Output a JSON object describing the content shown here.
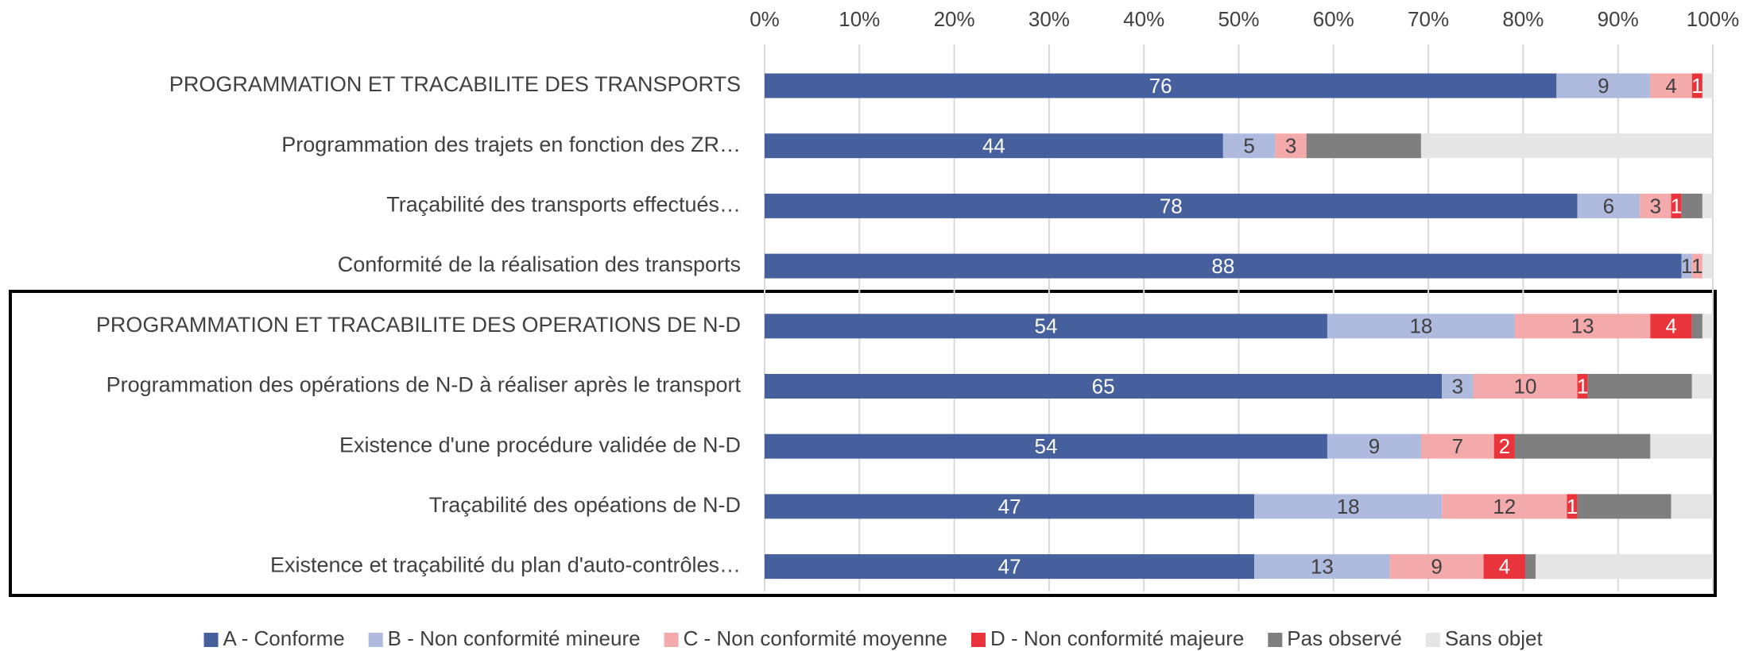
{
  "chart_data": {
    "type": "stacked_bar_percent",
    "orientation": "horizontal",
    "categories": [
      "PROGRAMMATION ET TRACABILITE DES TRANSPORTS",
      "Programmation des trajets en fonction des ZR…",
      "Traçabilité des transports effectués…",
      "Conformité de la réalisation des transports",
      "PROGRAMMATION ET TRACABILITE DES OPERATIONS DE N-D",
      "Programmation des opérations de N-D à réaliser après le transport",
      "Existence d'une procédure validée de N-D",
      "Traçabilité des opéations de N-D",
      "Existence et traçabilité du plan d'auto-contrôles…"
    ],
    "series": [
      {
        "name": "A - Conforme",
        "color": "#465f9d",
        "label_color": "#ffffff",
        "data_labels": true,
        "values": [
          76,
          44,
          78,
          88,
          54,
          65,
          54,
          47,
          47
        ]
      },
      {
        "name": "B - Non conformité mineure",
        "color": "#aebbde",
        "label_color": "#404040",
        "data_labels": true,
        "values": [
          9,
          5,
          6,
          1,
          18,
          3,
          9,
          18,
          13
        ]
      },
      {
        "name": "C - Non conformité moyenne",
        "color": "#f4a9ab",
        "label_color": "#404040",
        "data_labels": true,
        "values": [
          4,
          3,
          3,
          1,
          13,
          10,
          7,
          12,
          9
        ]
      },
      {
        "name": "D - Non conformité majeure",
        "color": "#e8343a",
        "label_color": "#ffffff",
        "data_labels": true,
        "values": [
          1,
          0,
          1,
          0,
          4,
          1,
          2,
          1,
          4
        ]
      },
      {
        "name": "Pas observé",
        "color": "#7f7f7f",
        "data_labels": false,
        "values": [
          0,
          11,
          2,
          0,
          1,
          10,
          13,
          9,
          1
        ]
      },
      {
        "name": "Sans objet",
        "color": "#e5e5e5",
        "data_labels": false,
        "values": [
          1,
          28,
          1,
          1,
          1,
          2,
          6,
          4,
          17
        ]
      }
    ],
    "xlim": [
      0,
      100
    ],
    "xticks": [
      {
        "value": 0,
        "label": "0%"
      },
      {
        "value": 10,
        "label": "10%"
      },
      {
        "value": 20,
        "label": "20%"
      },
      {
        "value": 30,
        "label": "30%"
      },
      {
        "value": 40,
        "label": "40%"
      },
      {
        "value": 50,
        "label": "50%"
      },
      {
        "value": 60,
        "label": "60%"
      },
      {
        "value": 70,
        "label": "70%"
      },
      {
        "value": 80,
        "label": "80%"
      },
      {
        "value": 90,
        "label": "90%"
      },
      {
        "value": 100,
        "label": "100%"
      }
    ],
    "grid": true,
    "legend": "bottom"
  }
}
